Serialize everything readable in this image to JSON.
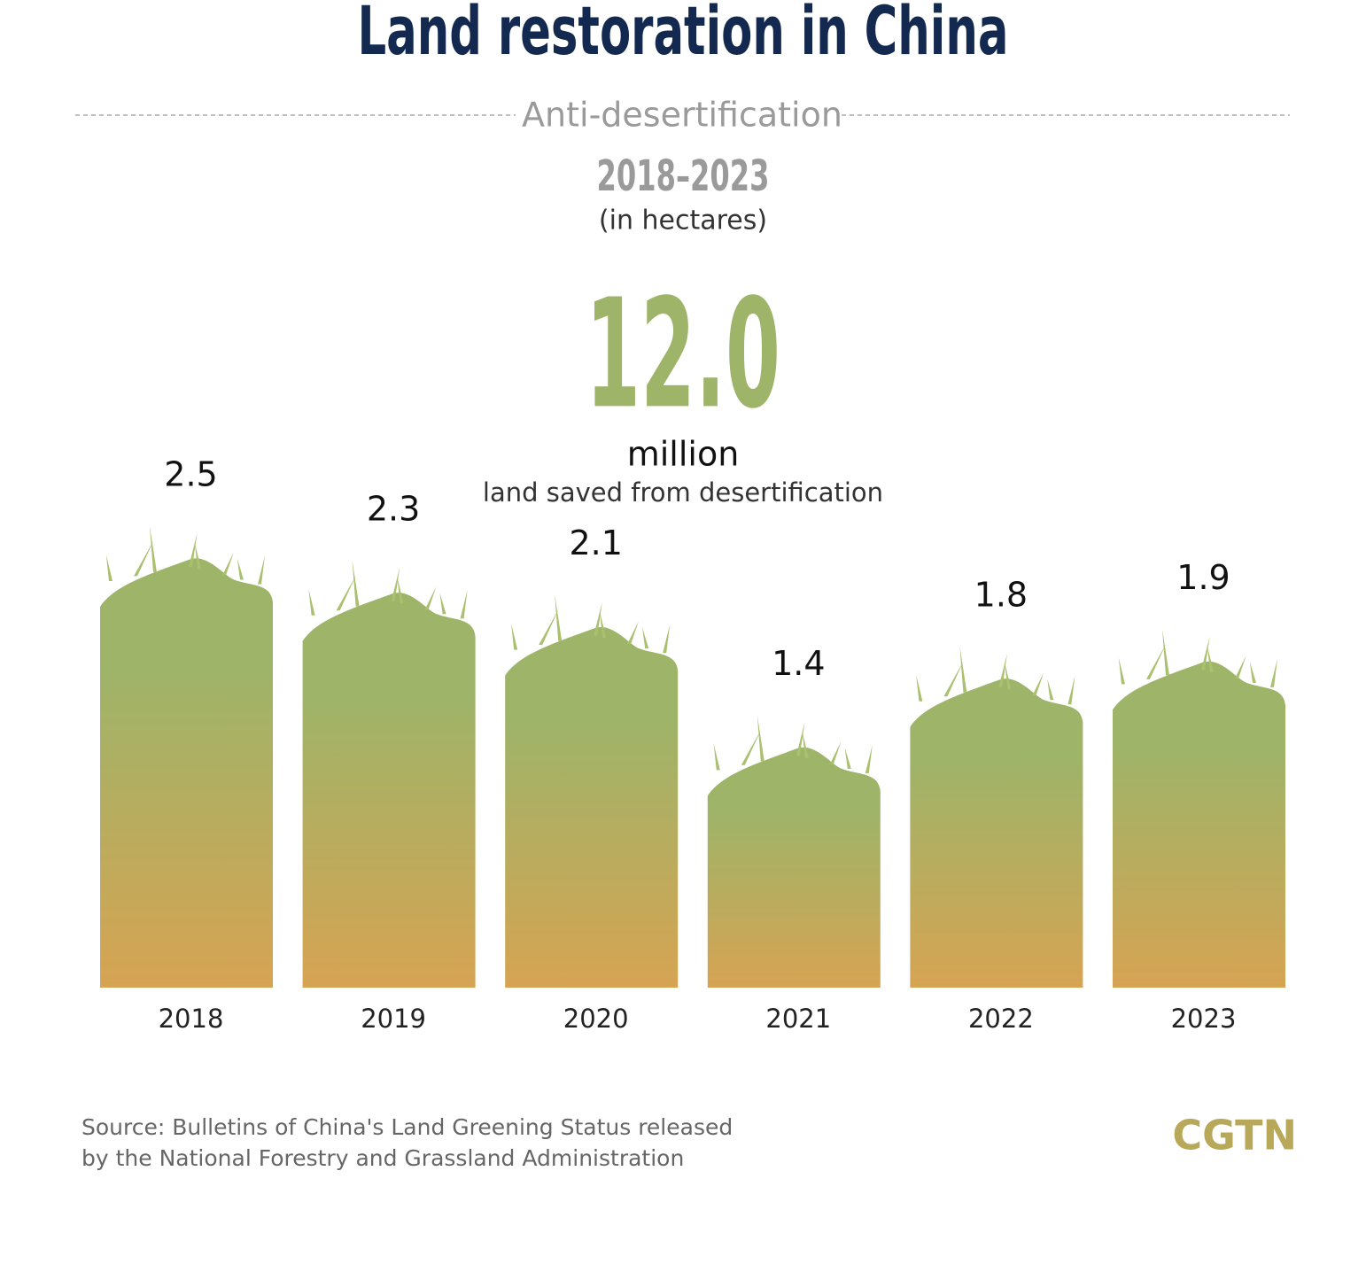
{
  "chart_data": {
    "type": "bar",
    "title": "Land restoration in China",
    "subtitle": "Anti-desertification",
    "period": "2018–2023",
    "unit": "(in hectares)",
    "total": "12.0",
    "total_unit": "million",
    "total_caption": "land saved from desertification",
    "categories": [
      "2018",
      "2019",
      "2020",
      "2021",
      "2022",
      "2023"
    ],
    "values": [
      2.5,
      2.3,
      2.1,
      1.4,
      1.8,
      1.9
    ],
    "gradient": [
      "#9db469",
      "#d6a453"
    ],
    "source": [
      "Source: Bulletins of China's Land Greening Status released",
      "by the National Forestry and Grassland Administration"
    ],
    "logo": "CGTN"
  }
}
